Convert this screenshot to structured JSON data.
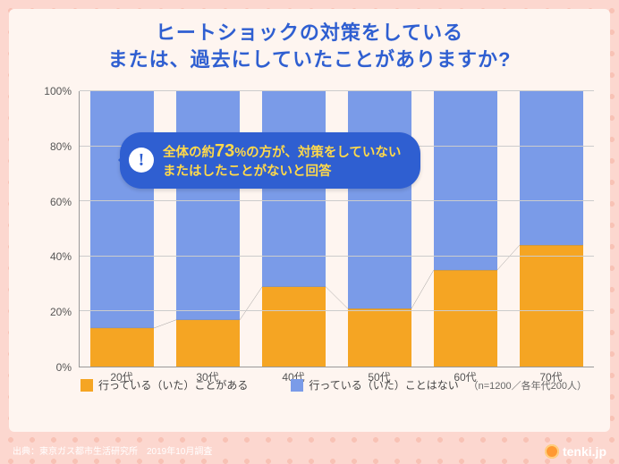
{
  "title": {
    "line1": "ヒートショックの対策をしている",
    "line2": "または、過去にしていたことがありますか?"
  },
  "chart": {
    "type": "stacked-bar-100",
    "categories": [
      "20代",
      "30代",
      "40代",
      "50代",
      "60代",
      "70代"
    ],
    "series": [
      {
        "name": "yes",
        "label": "行っている（いた）ことがある",
        "color": "#f5a523",
        "values": [
          14,
          17,
          29,
          21,
          35,
          44
        ]
      },
      {
        "name": "no",
        "label": "行っている（いた）ことはない",
        "color": "#7a9be8",
        "values": [
          86,
          83,
          71,
          79,
          65,
          56
        ]
      }
    ],
    "ylim": [
      0,
      100
    ],
    "ytick_step": 20,
    "yticks": [
      "0%",
      "20%",
      "40%",
      "60%",
      "80%",
      "100%"
    ],
    "grid_color": "#cccccc",
    "axis_color": "#999999",
    "background_color": "#fef5f0",
    "bar_width_ratio": 0.74,
    "divider_color": "#888888"
  },
  "callout": {
    "prefix": "全体の約",
    "big": "73",
    "suffix": "%の方が、対策をしていない",
    "line2": "またはしたことがないと回答",
    "bg_color": "#2f5fd1",
    "text_color": "#ffd94a",
    "icon": "!"
  },
  "sample_note": "（n=1200／各年代200人）",
  "source": "出典：東京ガス都市生活研究所　2019年10月調査",
  "brand": "tenki.jp",
  "colors": {
    "outer_bg": "#fcd7cf",
    "card_bg": "#fef5f0",
    "title": "#2f5fd1"
  }
}
